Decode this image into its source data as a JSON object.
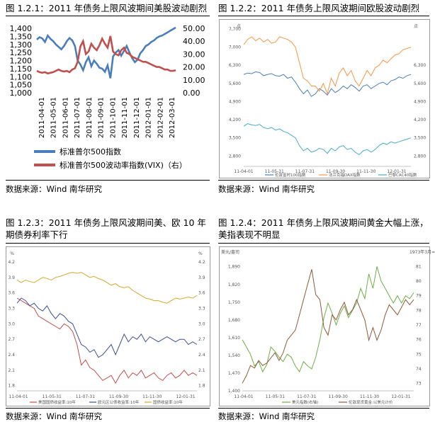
{
  "chart_data": [
    {
      "type": "line",
      "title": "图 1.2.1：2011 年债务上限风波期间美股波动剧烈",
      "source": "数据来源：Wind 南华研究",
      "x_ticks": [
        "2011-04-01",
        "2011-05-01",
        "2011-06-01",
        "2011-07-01",
        "2011-08-01",
        "2011-09-01",
        "2011-10-01",
        "2011-11-01",
        "2011-12-01",
        "2012-01-01",
        "2012-02-01",
        "2012-03-01"
      ],
      "ylim_left": [
        1000,
        1400
      ],
      "yticks_left": [
        "1,400",
        "1,350",
        "1,300",
        "1,250",
        "1,200",
        "1,150",
        "1,100",
        "1,050",
        "1,000"
      ],
      "ylim_right": [
        0,
        50
      ],
      "yticks_right": [
        "50.00",
        "40.00",
        "30.00",
        "20.00",
        "10.00",
        "0.00"
      ],
      "legend_position": "bottom",
      "series": [
        {
          "name": "标准普尔500指数",
          "axis": "left",
          "color": "#4a7ebb",
          "values": [
            1330,
            1345,
            1337,
            1315,
            1355,
            1335,
            1320,
            1300,
            1285,
            1270,
            1290,
            1320,
            1340,
            1325,
            1290,
            1200,
            1175,
            1140,
            1190,
            1220,
            1165,
            1200,
            1180,
            1155,
            1150,
            1130,
            1170,
            1090,
            1225,
            1250,
            1265,
            1230,
            1260,
            1290,
            1250,
            1215,
            1190,
            1205,
            1245,
            1265,
            1290,
            1300,
            1315,
            1325,
            1340,
            1350,
            1355,
            1365,
            1375,
            1385,
            1395,
            1405
          ]
        },
        {
          "name": "标准普尔500波动率指数(VIX)（右）",
          "axis": "right",
          "color": "#c0504d",
          "values": [
            17,
            16,
            15.5,
            16,
            15,
            15.5,
            16,
            17,
            18,
            17,
            16.5,
            17,
            16,
            18,
            19,
            24,
            36,
            40,
            30,
            32,
            38,
            35,
            33,
            37,
            42,
            38,
            35,
            44,
            32,
            30,
            29,
            33,
            35,
            31,
            30,
            28,
            27,
            26,
            25,
            24,
            24,
            23,
            22,
            21,
            20,
            20,
            19,
            18,
            18,
            17,
            17,
            17.5
          ]
        }
      ]
    },
    {
      "type": "line",
      "title": "图 1.2.2：2011 年债务上限风波期间欧股波动剧烈",
      "source": "数据来源：Wind 南华研究",
      "unit_left": "点",
      "unit_right": "点",
      "x_ticks": [
        "11-04-01",
        "11-05-31",
        "11-07-31",
        "11-09-30",
        "11-11-30",
        "12-01-31"
      ],
      "ylim": [
        2400,
        7700
      ],
      "yticks_left": [
        "7,700",
        "7,000",
        "6,300",
        "5,600",
        "4,900",
        "4,200",
        "3,500",
        "2,800"
      ],
      "yticks_right": [
        "6,300",
        "5,600",
        "4,900",
        "4,200",
        "3,500",
        "2,800"
      ],
      "legend_position": "bottom",
      "series": [
        {
          "name": "伦敦富时100指数",
          "color": "#4a7ebb",
          "values": [
            5950,
            6000,
            5980,
            6050,
            6020,
            5900,
            5950,
            5980,
            5900,
            5880,
            5950,
            5800,
            5850,
            5650,
            5400,
            5200,
            5350,
            5100,
            5200,
            5400,
            5300,
            5150,
            5400,
            5250,
            5350,
            5500,
            5400,
            5550,
            5450,
            5300,
            5500,
            5550,
            5400,
            5500,
            5600,
            5650,
            5550,
            5700,
            5750,
            5850,
            5800,
            5900,
            5950
          ]
        },
        {
          "name": "法兰克福DAX指数",
          "color": "#f79646",
          "values": [
            7100,
            7300,
            7400,
            7250,
            7350,
            7200,
            7300,
            7150,
            7200,
            7400,
            7350,
            7300,
            7200,
            7000,
            6400,
            5800,
            5700,
            5500,
            5500,
            5300,
            5600,
            5200,
            5800,
            5500,
            6000,
            6200,
            5900,
            6100,
            5700,
            5500,
            5800,
            6100,
            5900,
            6200,
            6300,
            6500,
            6400,
            6550,
            6700,
            6750,
            6900,
            6950,
            7000
          ]
        },
        {
          "name": "巴黎CAC40指数",
          "color": "#4bacc6",
          "values": [
            3950,
            4050,
            4000,
            3980,
            4020,
            3900,
            3850,
            3900,
            3800,
            3850,
            3750,
            3700,
            3600,
            3500,
            3200,
            3000,
            3100,
            2950,
            3000,
            3100,
            3050,
            2900,
            3100,
            3000,
            3150,
            3200,
            3050,
            3100,
            2950,
            2850,
            3000,
            3050,
            2950,
            3050,
            3200,
            3300,
            3250,
            3350,
            3300,
            3350,
            3400,
            3450,
            3500
          ]
        }
      ]
    },
    {
      "type": "line",
      "title": "图 1.2.3：2011 年债务上限风波期间美、欧 10 年期债券利率下行",
      "source": "数据来源：Wind 南华研究",
      "unit_left": "%",
      "unit_right": "%",
      "x_ticks": [
        "11-04-01",
        "11-05-31",
        "11-07-31",
        "11-09-30",
        "11-11-30",
        "12-01-31"
      ],
      "ylim": [
        1.7,
        4.2
      ],
      "yticks": [
        "4.2",
        "3.9",
        "3.6",
        "3.3",
        "3.0",
        "2.7",
        "2.4",
        "2.1",
        "1.8"
      ],
      "legend_position": "bottom",
      "series": [
        {
          "name": "美国国债收益率:10年",
          "color": "#c0504d",
          "values": [
            3.5,
            3.45,
            3.4,
            3.35,
            3.3,
            3.15,
            3.1,
            3.05,
            3.0,
            2.95,
            2.9,
            3.0,
            2.95,
            2.85,
            2.6,
            2.2,
            2.3,
            2.15,
            2.1,
            2.0,
            1.9,
            1.95,
            2.0,
            1.85,
            2.0,
            2.1,
            1.95,
            2.05,
            2.0,
            2.1,
            1.95,
            2.0,
            2.05,
            1.95,
            1.9,
            2.0,
            2.05,
            1.95,
            2.0,
            2.1,
            2.0,
            2.05,
            2.0
          ]
        },
        {
          "name": "欧元区公债收益率:10年",
          "color": "#3f4f8f",
          "values": [
            3.4,
            3.5,
            3.45,
            3.35,
            3.4,
            3.3,
            3.25,
            3.35,
            3.2,
            3.1,
            3.2,
            3.15,
            3.05,
            3.0,
            2.8,
            2.6,
            2.55,
            2.45,
            2.5,
            2.35,
            2.4,
            2.5,
            2.6,
            2.4,
            2.6,
            2.8,
            2.65,
            2.75,
            2.7,
            2.8,
            2.65,
            2.75,
            2.7,
            2.65,
            2.7,
            2.75,
            2.7,
            2.65,
            2.7,
            2.7,
            2.6,
            2.65,
            2.6
          ]
        },
        {
          "name": "国债收益率:10年",
          "color": "#d4a82b",
          "values": [
            3.85,
            3.8,
            3.85,
            3.82,
            3.8,
            3.85,
            3.9,
            3.88,
            3.85,
            3.9,
            3.92,
            3.95,
            3.98,
            4.0,
            3.98,
            4.0,
            3.95,
            3.9,
            3.92,
            3.88,
            3.85,
            3.8,
            3.75,
            3.78,
            3.72,
            3.7,
            3.72,
            3.65,
            3.6,
            3.55,
            3.5,
            3.48,
            3.45,
            3.45,
            3.42,
            3.4,
            3.45,
            3.5,
            3.48,
            3.5,
            3.52,
            3.5,
            3.55
          ]
        }
      ]
    },
    {
      "type": "line",
      "title": "图 1.2.4：2011 年债务上限风波期间黄金大幅上涨，美指表现不明显",
      "source": "数据来源：Wind 南华研究",
      "unit_left": "美元/盎司",
      "unit_right": "1973年3月=1(",
      "x_ticks": [
        "11-04-01",
        "11-05-31",
        "11-07-31",
        "11-09-30",
        "11-11-30",
        "12-01-31"
      ],
      "ylim_left": [
        1400,
        1920
      ],
      "yticks_left": [
        "1,890",
        "1,820",
        "1,750",
        "1,680",
        "1,610",
        "1,540",
        "1,470",
        "1,400"
      ],
      "ylim_right": [
        72.5,
        81.5
      ],
      "yticks_right": [
        "81",
        "80",
        "79",
        "78",
        "77",
        "76",
        "75",
        "74",
        "73"
      ],
      "legend_position": "bottom",
      "series": [
        {
          "name": "美元指数(右轴)",
          "axis": "right",
          "color": "#70ad47",
          "values": [
            76,
            75.5,
            75,
            74.2,
            74.5,
            73.8,
            74.3,
            75.5,
            75.2,
            74.8,
            74.5,
            75,
            74.8,
            74.2,
            73.8,
            74.5,
            74.2,
            74,
            74.8,
            76,
            77.5,
            78.5,
            77.8,
            77,
            77.8,
            78.3,
            77.5,
            78,
            78.5,
            79.5,
            78.8,
            80.5,
            79.5,
            81,
            80,
            79.5,
            79,
            78.5,
            79,
            78.5,
            79,
            78.8,
            79.2
          ]
        },
        {
          "name": "伦敦现货黄金:以美元计价",
          "axis": "left",
          "color": "#8b5a3c",
          "values": [
            1430,
            1460,
            1500,
            1490,
            1520,
            1500,
            1510,
            1530,
            1550,
            1520,
            1550,
            1600,
            1620,
            1640,
            1700,
            1760,
            1820,
            1880,
            1780,
            1760,
            1650,
            1620,
            1700,
            1680,
            1720,
            1750,
            1700,
            1720,
            1760,
            1720,
            1680,
            1600,
            1650,
            1600,
            1640,
            1700,
            1740,
            1720,
            1700,
            1730,
            1760,
            1740,
            1760
          ]
        }
      ]
    }
  ]
}
